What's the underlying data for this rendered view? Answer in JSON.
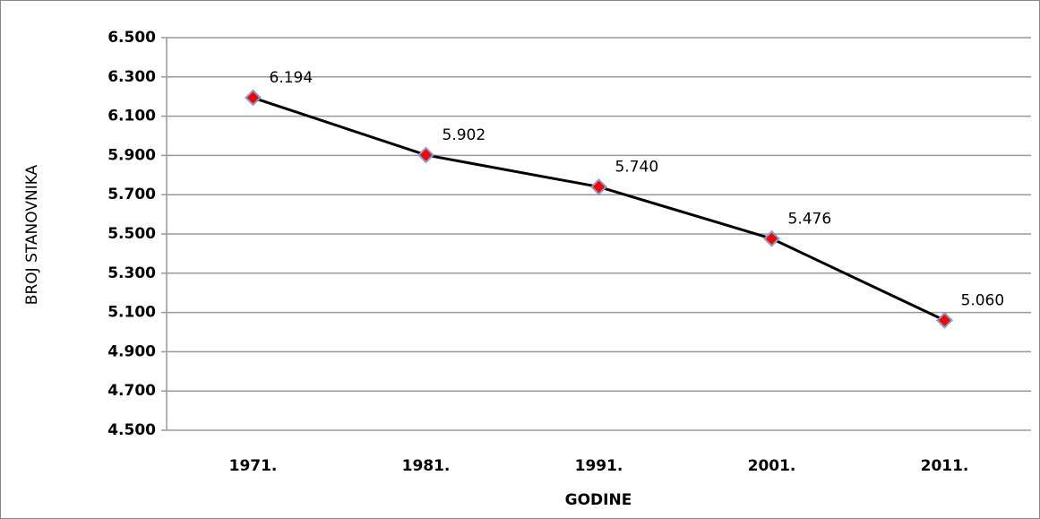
{
  "chart_data": {
    "type": "line",
    "categories": [
      "1971.",
      "1981.",
      "1991.",
      "2001.",
      "2011."
    ],
    "values": [
      6194,
      5902,
      5740,
      5476,
      5060
    ],
    "value_labels": [
      "6.194",
      "5.902",
      "5.740",
      "5.476",
      "5.060"
    ],
    "color": "#000000",
    "marker_color": "#ff0000",
    "marker_edge": "#7f9fd0",
    "xlabel": "GODINE",
    "ylabel": "BROJ STANOVNIKA",
    "ylim": [
      4500,
      6500
    ],
    "yticks": [
      {
        "value": 4500,
        "label": "4.500"
      },
      {
        "value": 4700,
        "label": "4.700"
      },
      {
        "value": 4900,
        "label": "4.900"
      },
      {
        "value": 5100,
        "label": "5.100"
      },
      {
        "value": 5300,
        "label": "5.300"
      },
      {
        "value": 5500,
        "label": "5.500"
      },
      {
        "value": 5700,
        "label": "5.700"
      },
      {
        "value": 5900,
        "label": "5.900"
      },
      {
        "value": 6100,
        "label": "6.100"
      },
      {
        "value": 6300,
        "label": "6.300"
      },
      {
        "value": 6500,
        "label": "6.500"
      }
    ],
    "grid": true
  }
}
